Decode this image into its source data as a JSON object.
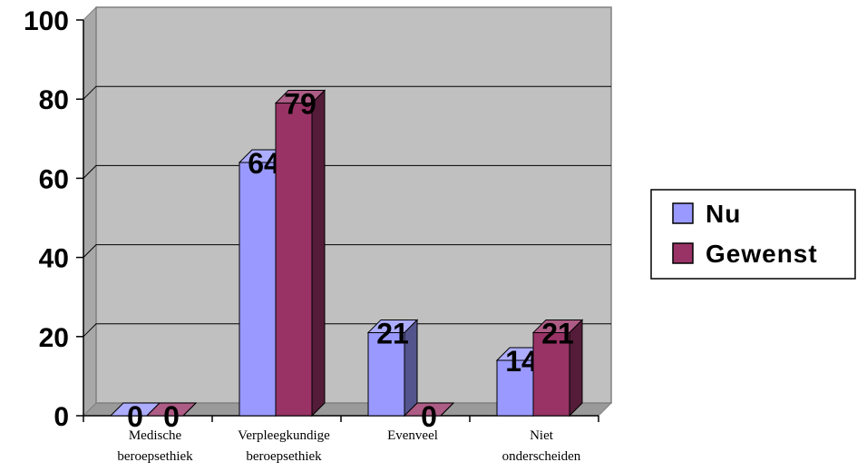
{
  "chart_data": {
    "type": "bar",
    "categories": [
      [
        "Medische",
        "beroepsethiek"
      ],
      [
        "Verpleegkundige",
        "beroepsethiek"
      ],
      [
        "Evenveel"
      ],
      [
        "Niet",
        "onderscheiden"
      ]
    ],
    "series": [
      {
        "name": "Nu",
        "values": [
          0,
          64,
          21,
          14
        ],
        "color": "#9999ff"
      },
      {
        "name": "Gewenst",
        "values": [
          0,
          79,
          0,
          21
        ],
        "color": "#993366"
      }
    ],
    "ylim": [
      0,
      100
    ],
    "yticks": [
      "0",
      "20",
      "40",
      "60",
      "80",
      "100"
    ],
    "grid": true,
    "plot_background": "#c0c0c0",
    "legend": "right",
    "three_d": true
  }
}
